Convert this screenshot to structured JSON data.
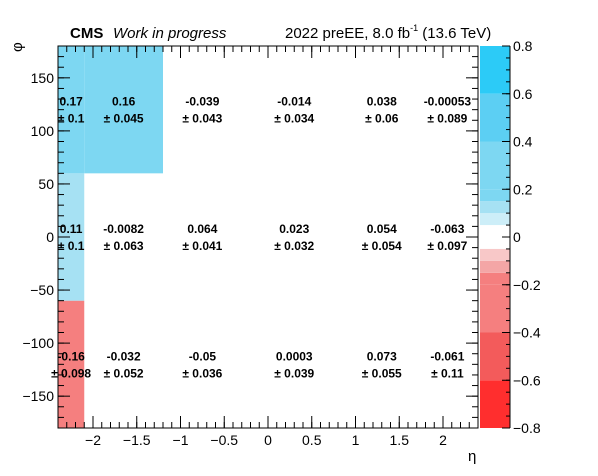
{
  "header": {
    "experiment": "CMS",
    "status": "Work in progress",
    "lumi_prefix": "2022 preEE, 8.0 fb",
    "lumi_exp": "-1",
    "lumi_suffix": " (13.6 TeV)"
  },
  "chart_data": {
    "type": "heatmap",
    "title": "",
    "xlabel": "η",
    "ylabel": "φ",
    "xlim": [
      -2.4,
      2.4
    ],
    "ylim": [
      -180,
      180
    ],
    "x_ticks": [
      -2,
      -1.5,
      -1,
      -0.5,
      0,
      0.5,
      1,
      1.5,
      2
    ],
    "x_tick_labels": [
      "−2",
      "−1.5",
      "−1",
      "−0.5",
      "0",
      "0.5",
      "1",
      "1.5",
      "2"
    ],
    "y_ticks": [
      -150,
      -100,
      -50,
      0,
      50,
      100,
      150
    ],
    "y_tick_labels": [
      "−150",
      "−100",
      "−50",
      "0",
      "50",
      "100",
      "150"
    ],
    "x_bin_edges": [
      -2.4,
      -2.1,
      -1.2,
      -0.3,
      0.9,
      1.7,
      2.4
    ],
    "y_bin_edges": [
      -180,
      -60,
      60,
      180
    ],
    "cells": [
      {
        "row": 0,
        "values": [
          -0.16,
          -0.032,
          -0.05,
          0.0003,
          0.073,
          -0.061
        ],
        "value_labels": [
          "-0.16",
          "-0.032",
          "-0.05",
          "0.0003",
          "0.073",
          "-0.061"
        ],
        "error_labels": [
          "± 0.098",
          "± 0.052",
          "± 0.036",
          "± 0.039",
          "± 0.055",
          "± 0.11"
        ]
      },
      {
        "row": 1,
        "values": [
          0.11,
          -0.0082,
          0.064,
          0.023,
          0.054,
          -0.063
        ],
        "value_labels": [
          "0.11",
          "-0.0082",
          "0.064",
          "0.023",
          "0.054",
          "-0.063"
        ],
        "error_labels": [
          "± 0.1",
          "± 0.063",
          "± 0.041",
          "± 0.032",
          "± 0.054",
          "± 0.097"
        ]
      },
      {
        "row": 2,
        "values": [
          0.17,
          0.16,
          -0.039,
          -0.014,
          0.038,
          -0.00053
        ],
        "value_labels": [
          "0.17",
          "0.16",
          "-0.039",
          "-0.014",
          "0.038",
          "-0.00053"
        ],
        "error_labels": [
          "± 0.1",
          "± 0.045",
          "± 0.043",
          "± 0.034",
          "± 0.06",
          "± 0.089"
        ]
      }
    ],
    "colorbar": {
      "range": [
        -0.8,
        0.8
      ],
      "ticks": [
        -0.8,
        -0.6,
        -0.4,
        -0.2,
        0,
        0.2,
        0.4,
        0.6,
        0.8
      ],
      "tick_labels": [
        "−0.8",
        "−0.6",
        "−0.4",
        "−0.2",
        "0",
        "0.2",
        "0.4",
        "0.6",
        "0.8"
      ],
      "shaded_levels": [
        -0.8,
        -0.6,
        -0.4,
        -0.2,
        -0.15,
        -0.1,
        -0.05,
        0.05,
        0.1,
        0.15,
        0.2,
        0.4,
        0.6,
        0.8
      ]
    },
    "fill_threshold": 0.1,
    "colors": {
      "pos_strong": "#2ccbf7",
      "pos_mid": "#5ccff3",
      "pos_fill": "#7dd7f2",
      "pos_light": "#a6e1f3",
      "pos_pale": "#cdeef8",
      "neg_pale": "#f8c8c8",
      "neg_light": "#f4a6a6",
      "neg_fill": "#f57f7f",
      "neg_mid": "#f35b5b",
      "neg_strong": "#ff2e2e"
    }
  }
}
